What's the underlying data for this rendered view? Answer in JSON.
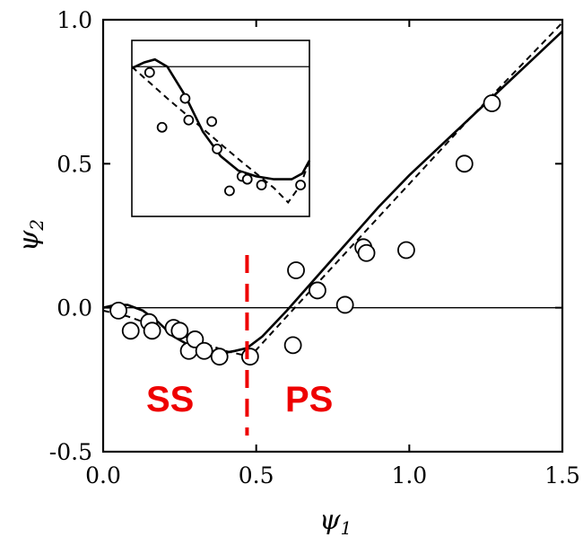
{
  "chart_data": [
    {
      "type": "scatter",
      "title": "",
      "xlabel": "ψ",
      "xlabel_sub": "1",
      "ylabel": "ψ",
      "ylabel_sub": "2",
      "xlim": [
        0.0,
        1.5
      ],
      "ylim": [
        -0.5,
        1.0
      ],
      "x_ticks": [
        "0.0",
        "0.5",
        "1.0",
        "1.5"
      ],
      "y_ticks": [
        "1.0",
        "0.5",
        "0.0",
        "-0.5"
      ],
      "grid": false,
      "zero_line": 0.0,
      "series": [
        {
          "style": "open-circles",
          "x": [
            0.05,
            0.09,
            0.15,
            0.16,
            0.23,
            0.25,
            0.28,
            0.3,
            0.33,
            0.38,
            0.48,
            0.62,
            0.63,
            0.7,
            0.79,
            0.85,
            0.86,
            0.99,
            1.18,
            1.27
          ],
          "y": [
            -0.01,
            -0.08,
            -0.05,
            -0.08,
            -0.07,
            -0.08,
            -0.15,
            -0.11,
            -0.15,
            -0.17,
            -0.17,
            -0.13,
            0.13,
            0.06,
            0.01,
            0.21,
            0.19,
            0.2,
            0.5,
            0.71
          ]
        },
        {
          "style": "solid-line",
          "x": [
            0.0,
            0.04,
            0.08,
            0.13,
            0.18,
            0.23,
            0.28,
            0.33,
            0.38,
            0.43,
            0.47,
            0.52,
            0.6,
            0.7,
            0.8,
            0.9,
            1.0,
            1.1,
            1.2,
            1.3,
            1.4,
            1.5
          ],
          "y": [
            0.0,
            0.01,
            0.01,
            -0.01,
            -0.05,
            -0.1,
            -0.13,
            -0.15,
            -0.16,
            -0.15,
            -0.14,
            -0.1,
            -0.01,
            0.11,
            0.23,
            0.35,
            0.46,
            0.56,
            0.66,
            0.76,
            0.86,
            0.96
          ]
        },
        {
          "style": "dashed-line",
          "x": [
            0.0,
            0.08,
            0.16,
            0.24,
            0.32,
            0.4,
            0.48,
            0.6,
            0.8,
            1.0,
            1.2,
            1.4,
            1.5
          ],
          "y": [
            -0.01,
            -0.03,
            -0.06,
            -0.09,
            -0.12,
            -0.15,
            -0.17,
            -0.03,
            0.2,
            0.43,
            0.66,
            0.88,
            0.99
          ]
        }
      ],
      "vertical_marker": {
        "x": 0.47,
        "color": "#ee0000",
        "style": "dashed"
      },
      "region_labels": [
        "SS",
        "PS"
      ],
      "colors": {
        "data": "#000000",
        "marker": "#ee0000",
        "labels": "#ee0000"
      }
    },
    {
      "type": "scatter",
      "role": "inset",
      "title": "",
      "series": [
        {
          "style": "open-circles",
          "x": [
            0.1,
            0.17,
            0.3,
            0.32,
            0.45,
            0.48,
            0.55,
            0.62,
            0.65,
            0.73,
            0.95
          ],
          "y": [
            0.96,
            0.58,
            0.78,
            0.63,
            0.62,
            0.43,
            0.14,
            0.24,
            0.22,
            0.18,
            0.18
          ]
        },
        {
          "style": "solid-line",
          "x": [
            0.0,
            0.07,
            0.13,
            0.2,
            0.3,
            0.4,
            0.5,
            0.6,
            0.7,
            0.8,
            0.9,
            0.96,
            1.0
          ],
          "y": [
            0.99,
            1.03,
            1.05,
            1.0,
            0.8,
            0.55,
            0.38,
            0.28,
            0.24,
            0.22,
            0.22,
            0.26,
            0.35
          ]
        },
        {
          "style": "dashed-line",
          "x": [
            0.0,
            0.2,
            0.4,
            0.6,
            0.8,
            0.88,
            0.95,
            1.0
          ],
          "y": [
            1.0,
            0.78,
            0.57,
            0.36,
            0.16,
            0.06,
            0.18,
            0.35
          ]
        }
      ],
      "reference_line": 1.0
    }
  ]
}
